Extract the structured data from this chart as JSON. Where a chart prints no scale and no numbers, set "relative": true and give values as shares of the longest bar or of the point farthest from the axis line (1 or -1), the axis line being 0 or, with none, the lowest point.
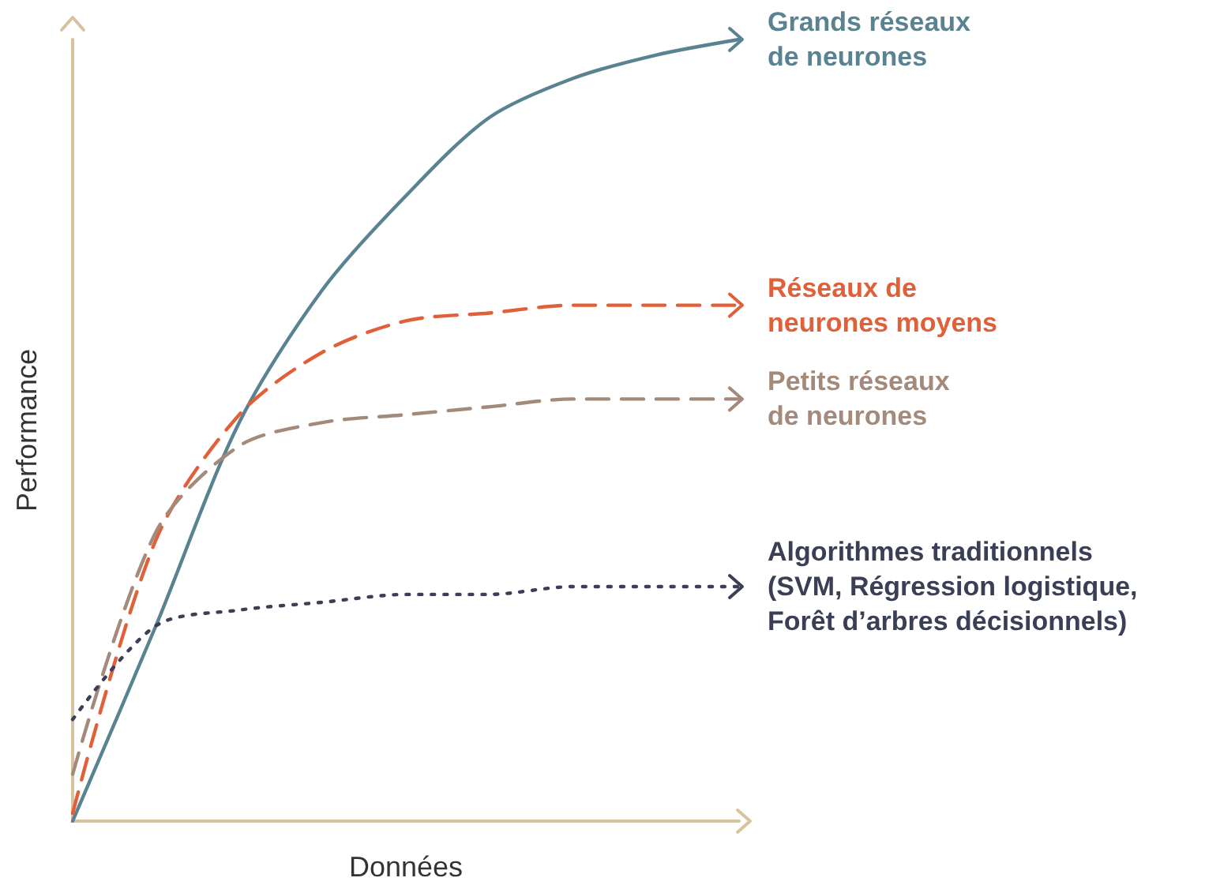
{
  "chart_data": {
    "type": "line",
    "relative": true,
    "xlabel": "Données",
    "ylabel": "Performance",
    "categories": [
      null,
      null,
      null,
      null,
      null,
      null,
      null,
      null,
      null
    ],
    "series": [
      {
        "name": "Grands réseaux\nde neurones",
        "color": "#5a8391",
        "line_style": "solid",
        "values": [
          0,
          0.25,
          0.51,
          0.68,
          0.8,
          0.9,
          0.95,
          0.98,
          1
        ]
      },
      {
        "name": "Réseaux de\nneurones moyens",
        "color": "#e0603a",
        "line_style": "dashed",
        "values": [
          0.01,
          0.36,
          0.52,
          0.6,
          0.64,
          0.65,
          0.66,
          0.66,
          0.66
        ]
      },
      {
        "name": "Petits réseaux\nde neurones",
        "color": "#a38a7a",
        "line_style": "dashed",
        "values": [
          0.06,
          0.37,
          0.48,
          0.51,
          0.52,
          0.53,
          0.54,
          0.54,
          0.54
        ]
      },
      {
        "name": "Algorithmes traditionnels\n(SVM, Régression logistique,\nForêt d’arbres décisionnels)",
        "color": "#3a3f55",
        "line_style": "dotted",
        "values": [
          0.13,
          0.25,
          0.27,
          0.28,
          0.29,
          0.29,
          0.3,
          0.3,
          0.3
        ]
      }
    ]
  }
}
